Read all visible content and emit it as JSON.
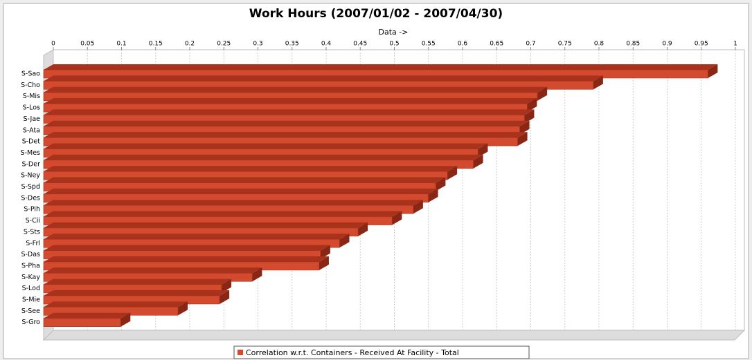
{
  "chart_data": {
    "type": "bar3d_horizontal",
    "title": "Work Hours (2007/01/02 - 2007/04/30)",
    "x_label": "Data ->",
    "categories": [
      "S-Sao",
      "S-Cho",
      "S-Mis",
      "S-Los",
      "S-Jae",
      "S-Ata",
      "S-Det",
      "S-Mes",
      "S-Der",
      "S-Ney",
      "S-Spd",
      "S-Des",
      "S-Pih",
      "S-Cii",
      "S-Sts",
      "S-Frl",
      "S-Das",
      "S-Pha",
      "S-Kay",
      "S-Lod",
      "S-Mie",
      "S-See",
      "S-Gro"
    ],
    "series": [
      {
        "name": "Correlation w.r.t. Containers - Received At Facility - Total",
        "color": "#d44a2e",
        "values": [
          0.974,
          0.806,
          0.724,
          0.709,
          0.705,
          0.698,
          0.695,
          0.637,
          0.63,
          0.592,
          0.575,
          0.564,
          0.542,
          0.511,
          0.461,
          0.434,
          0.406,
          0.404,
          0.306,
          0.261,
          0.258,
          0.197,
          0.113
        ]
      }
    ],
    "xlim": [
      0,
      1
    ],
    "xticks": [
      0,
      0.05,
      0.1,
      0.15,
      0.2,
      0.25,
      0.3,
      0.35,
      0.4,
      0.45,
      0.5,
      0.55,
      0.6,
      0.65,
      0.7,
      0.75,
      0.8,
      0.85,
      0.9,
      0.95,
      1
    ],
    "grid": true,
    "legend": "bottom"
  }
}
